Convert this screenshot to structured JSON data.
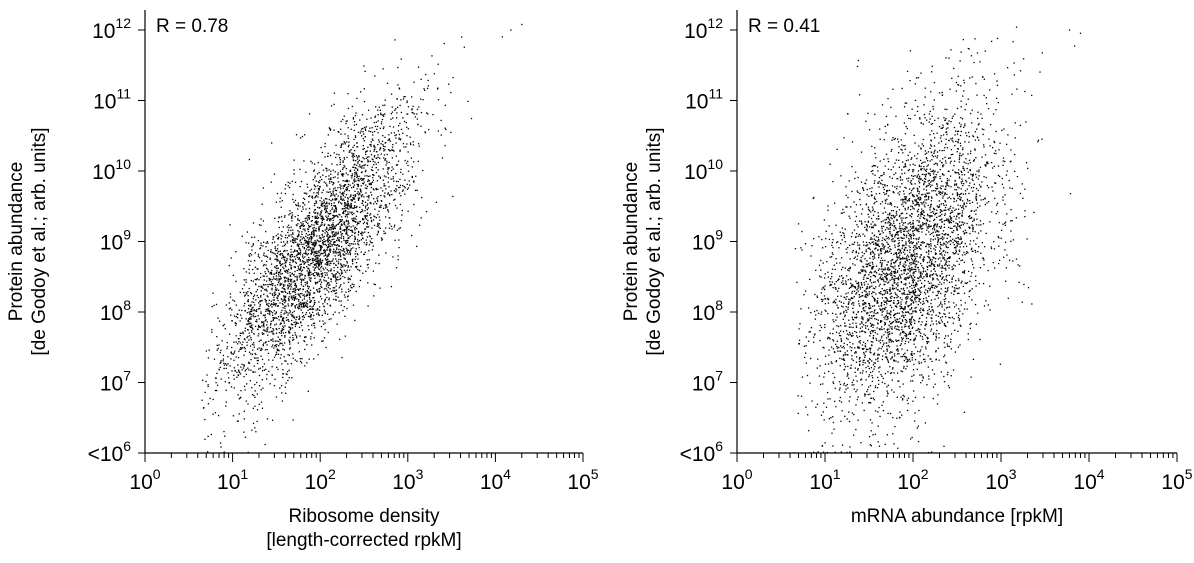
{
  "chart_data": [
    {
      "type": "scatter",
      "panel": "left",
      "annotation": "R = 0.78",
      "xlabel": [
        "Ribosome density",
        "[length-corrected rpkM]"
      ],
      "ylabel": [
        "Protein abundance",
        "[de Godoy et al.; arb. units]"
      ],
      "xscale": "log",
      "yscale": "log",
      "xlim": [
        1,
        100000
      ],
      "ylim": [
        1000000,
        1000000000000
      ],
      "x_ticks": [
        {
          "base": "10",
          "exp": "0",
          "value": 1
        },
        {
          "base": "10",
          "exp": "1",
          "value": 10
        },
        {
          "base": "10",
          "exp": "2",
          "value": 100
        },
        {
          "base": "10",
          "exp": "3",
          "value": 1000
        },
        {
          "base": "10",
          "exp": "4",
          "value": 10000
        },
        {
          "base": "10",
          "exp": "5",
          "value": 100000
        }
      ],
      "y_ticks": [
        {
          "base": "<10",
          "exp": "6",
          "value": 1000000
        },
        {
          "base": "10",
          "exp": "7",
          "value": 10000000
        },
        {
          "base": "10",
          "exp": "8",
          "value": 100000000
        },
        {
          "base": "10",
          "exp": "9",
          "value": 1000000000
        },
        {
          "base": "10",
          "exp": "10",
          "value": 10000000000
        },
        {
          "base": "10",
          "exp": "11",
          "value": 100000000000
        },
        {
          "base": "10",
          "exp": "12",
          "value": 1000000000000
        }
      ],
      "point_color": "#000000",
      "correlation": 0.78,
      "n_points": 3600,
      "points_seed": 11,
      "points_model": {
        "x_log10_mean": 1.95,
        "x_log10_sd": 0.55,
        "y_log10_slope": 1.42,
        "y_log10_intercept": 6.1,
        "y_log10_noise_sd": 0.62
      },
      "extreme_points": [
        [
          20000,
          1200000000000
        ],
        [
          15000,
          1000000000000
        ],
        [
          12000,
          800000000000
        ]
      ]
    },
    {
      "type": "scatter",
      "panel": "right",
      "annotation": "R = 0.41",
      "xlabel": [
        "mRNA abundance [rpkM]"
      ],
      "ylabel": [
        "Protein abundance",
        "[de Godoy et al.; arb. units]"
      ],
      "xscale": "log",
      "yscale": "log",
      "xlim": [
        1,
        100000
      ],
      "ylim": [
        1000000,
        1000000000000
      ],
      "x_ticks": [
        {
          "base": "10",
          "exp": "0",
          "value": 1
        },
        {
          "base": "10",
          "exp": "1",
          "value": 10
        },
        {
          "base": "10",
          "exp": "2",
          "value": 100
        },
        {
          "base": "10",
          "exp": "3",
          "value": 1000
        },
        {
          "base": "10",
          "exp": "4",
          "value": 10000
        },
        {
          "base": "10",
          "exp": "5",
          "value": 100000
        }
      ],
      "y_ticks": [
        {
          "base": "<10",
          "exp": "6",
          "value": 1000000
        },
        {
          "base": "10",
          "exp": "7",
          "value": 10000000
        },
        {
          "base": "10",
          "exp": "8",
          "value": 100000000
        },
        {
          "base": "10",
          "exp": "9",
          "value": 1000000000
        },
        {
          "base": "10",
          "exp": "10",
          "value": 10000000000
        },
        {
          "base": "10",
          "exp": "11",
          "value": 100000000000
        },
        {
          "base": "10",
          "exp": "12",
          "value": 1000000000000
        }
      ],
      "point_color": "#000000",
      "correlation": 0.41,
      "n_points": 4000,
      "points_seed": 29,
      "points_model": {
        "x_log10_mean": 1.95,
        "x_log10_sd": 0.52,
        "y_log10_slope": 1.05,
        "y_log10_intercept": 6.7,
        "y_log10_noise_sd": 0.95
      },
      "extreme_points": [
        [
          6000,
          1000000000000
        ],
        [
          8000,
          900000000000
        ],
        [
          1500,
          1100000000000
        ]
      ]
    }
  ]
}
